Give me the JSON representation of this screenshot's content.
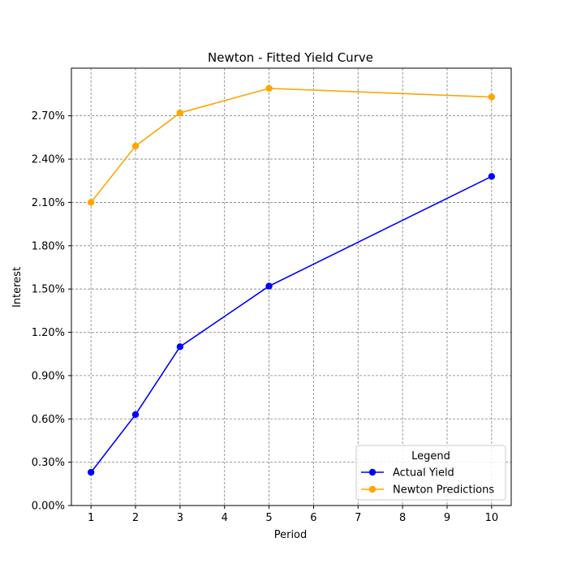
{
  "chart_data": {
    "type": "line",
    "title": "Newton - Fitted Yield Curve",
    "xlabel": "Period",
    "ylabel": "Interest",
    "xlim": [
      0.56,
      10.44
    ],
    "ylim": [
      0.0,
      0.0303
    ],
    "x_ticks": [
      1,
      2,
      3,
      4,
      5,
      6,
      7,
      8,
      9,
      10
    ],
    "x_tick_labels": [
      "1",
      "2",
      "3",
      "4",
      "5",
      "6",
      "7",
      "8",
      "9",
      "10"
    ],
    "y_ticks": [
      0.0,
      0.003,
      0.006,
      0.009,
      0.012,
      0.015,
      0.018,
      0.021,
      0.024,
      0.027
    ],
    "y_tick_labels": [
      "0.00%",
      "0.30%",
      "0.60%",
      "0.90%",
      "1.20%",
      "1.50%",
      "1.80%",
      "2.10%",
      "2.40%",
      "2.70%"
    ],
    "grid": true,
    "legend": {
      "title": "Legend",
      "placement": "lower-right"
    },
    "series": [
      {
        "name": "Actual Yield",
        "color": "#0000ff",
        "x": [
          1,
          2,
          3,
          5,
          10
        ],
        "y": [
          0.0023,
          0.0063,
          0.011,
          0.0152,
          0.0228
        ]
      },
      {
        "name": "Newton Predictions",
        "color": "#ffa500",
        "x": [
          1,
          2,
          3,
          5,
          10
        ],
        "y": [
          0.021,
          0.0249,
          0.0272,
          0.0289,
          0.0283
        ]
      }
    ]
  }
}
